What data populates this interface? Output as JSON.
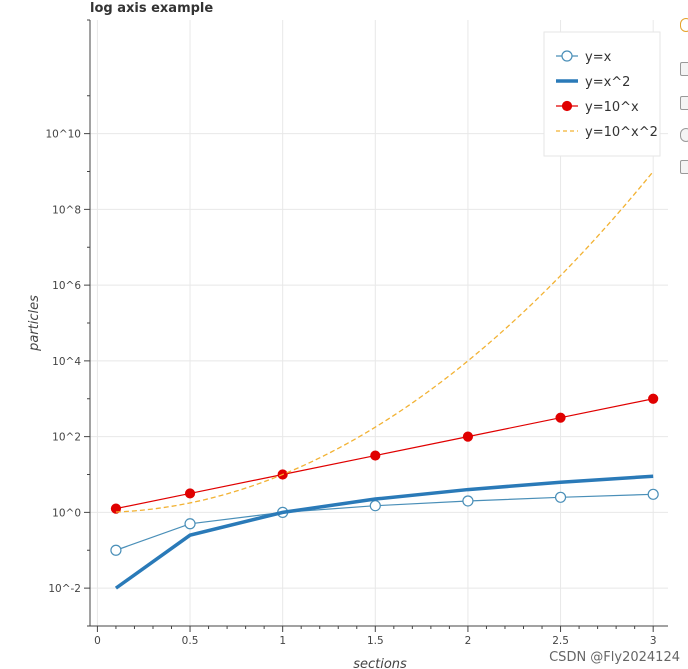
{
  "chart_data": {
    "type": "line",
    "title": "log axis example",
    "xlabel": "sections",
    "ylabel": "particles",
    "x_scale": "linear",
    "y_scale": "log",
    "xlim": [
      -0.04,
      3.08
    ],
    "ylim": [
      0.001,
      10000000000000.0
    ],
    "x_ticks": [
      0,
      0.5,
      1,
      1.5,
      2,
      2.5,
      3
    ],
    "x_tick_labels": [
      "0",
      "0.5",
      "1",
      "1.5",
      "2",
      "2.5",
      "3"
    ],
    "y_ticks": [
      0.01,
      1,
      100,
      10000,
      1000000,
      100000000,
      10000000000
    ],
    "y_tick_labels": [
      "10^-2",
      "10^0",
      "10^2",
      "10^4",
      "10^6",
      "10^8",
      "10^10"
    ],
    "grid": true,
    "legend_position": "top-right",
    "x": [
      0.1,
      0.5,
      1.0,
      1.5,
      2.0,
      2.5,
      3.0
    ],
    "series": [
      {
        "name": "y=x",
        "style": "line-open-circle",
        "color": "#4a8fb8",
        "values": [
          0.1,
          0.5,
          1.0,
          1.5,
          2.0,
          2.5,
          3.0
        ]
      },
      {
        "name": "y=x^2",
        "style": "thick-line",
        "color": "#2a7ab8",
        "values": [
          0.01,
          0.25,
          1.0,
          2.25,
          4.0,
          6.25,
          9.0
        ]
      },
      {
        "name": "y=10^x",
        "style": "line-filled-circle",
        "color": "#e00000",
        "values": [
          1.2589,
          3.1623,
          10,
          31.623,
          100,
          316.23,
          1000
        ]
      },
      {
        "name": "y=10^x^2",
        "style": "dashed-line",
        "color": "#f2b233",
        "values": [
          1.0233,
          1.7783,
          10,
          177.83,
          10000,
          1778300,
          1000000000
        ]
      }
    ]
  },
  "watermark": "CSDN @Fly2024124"
}
